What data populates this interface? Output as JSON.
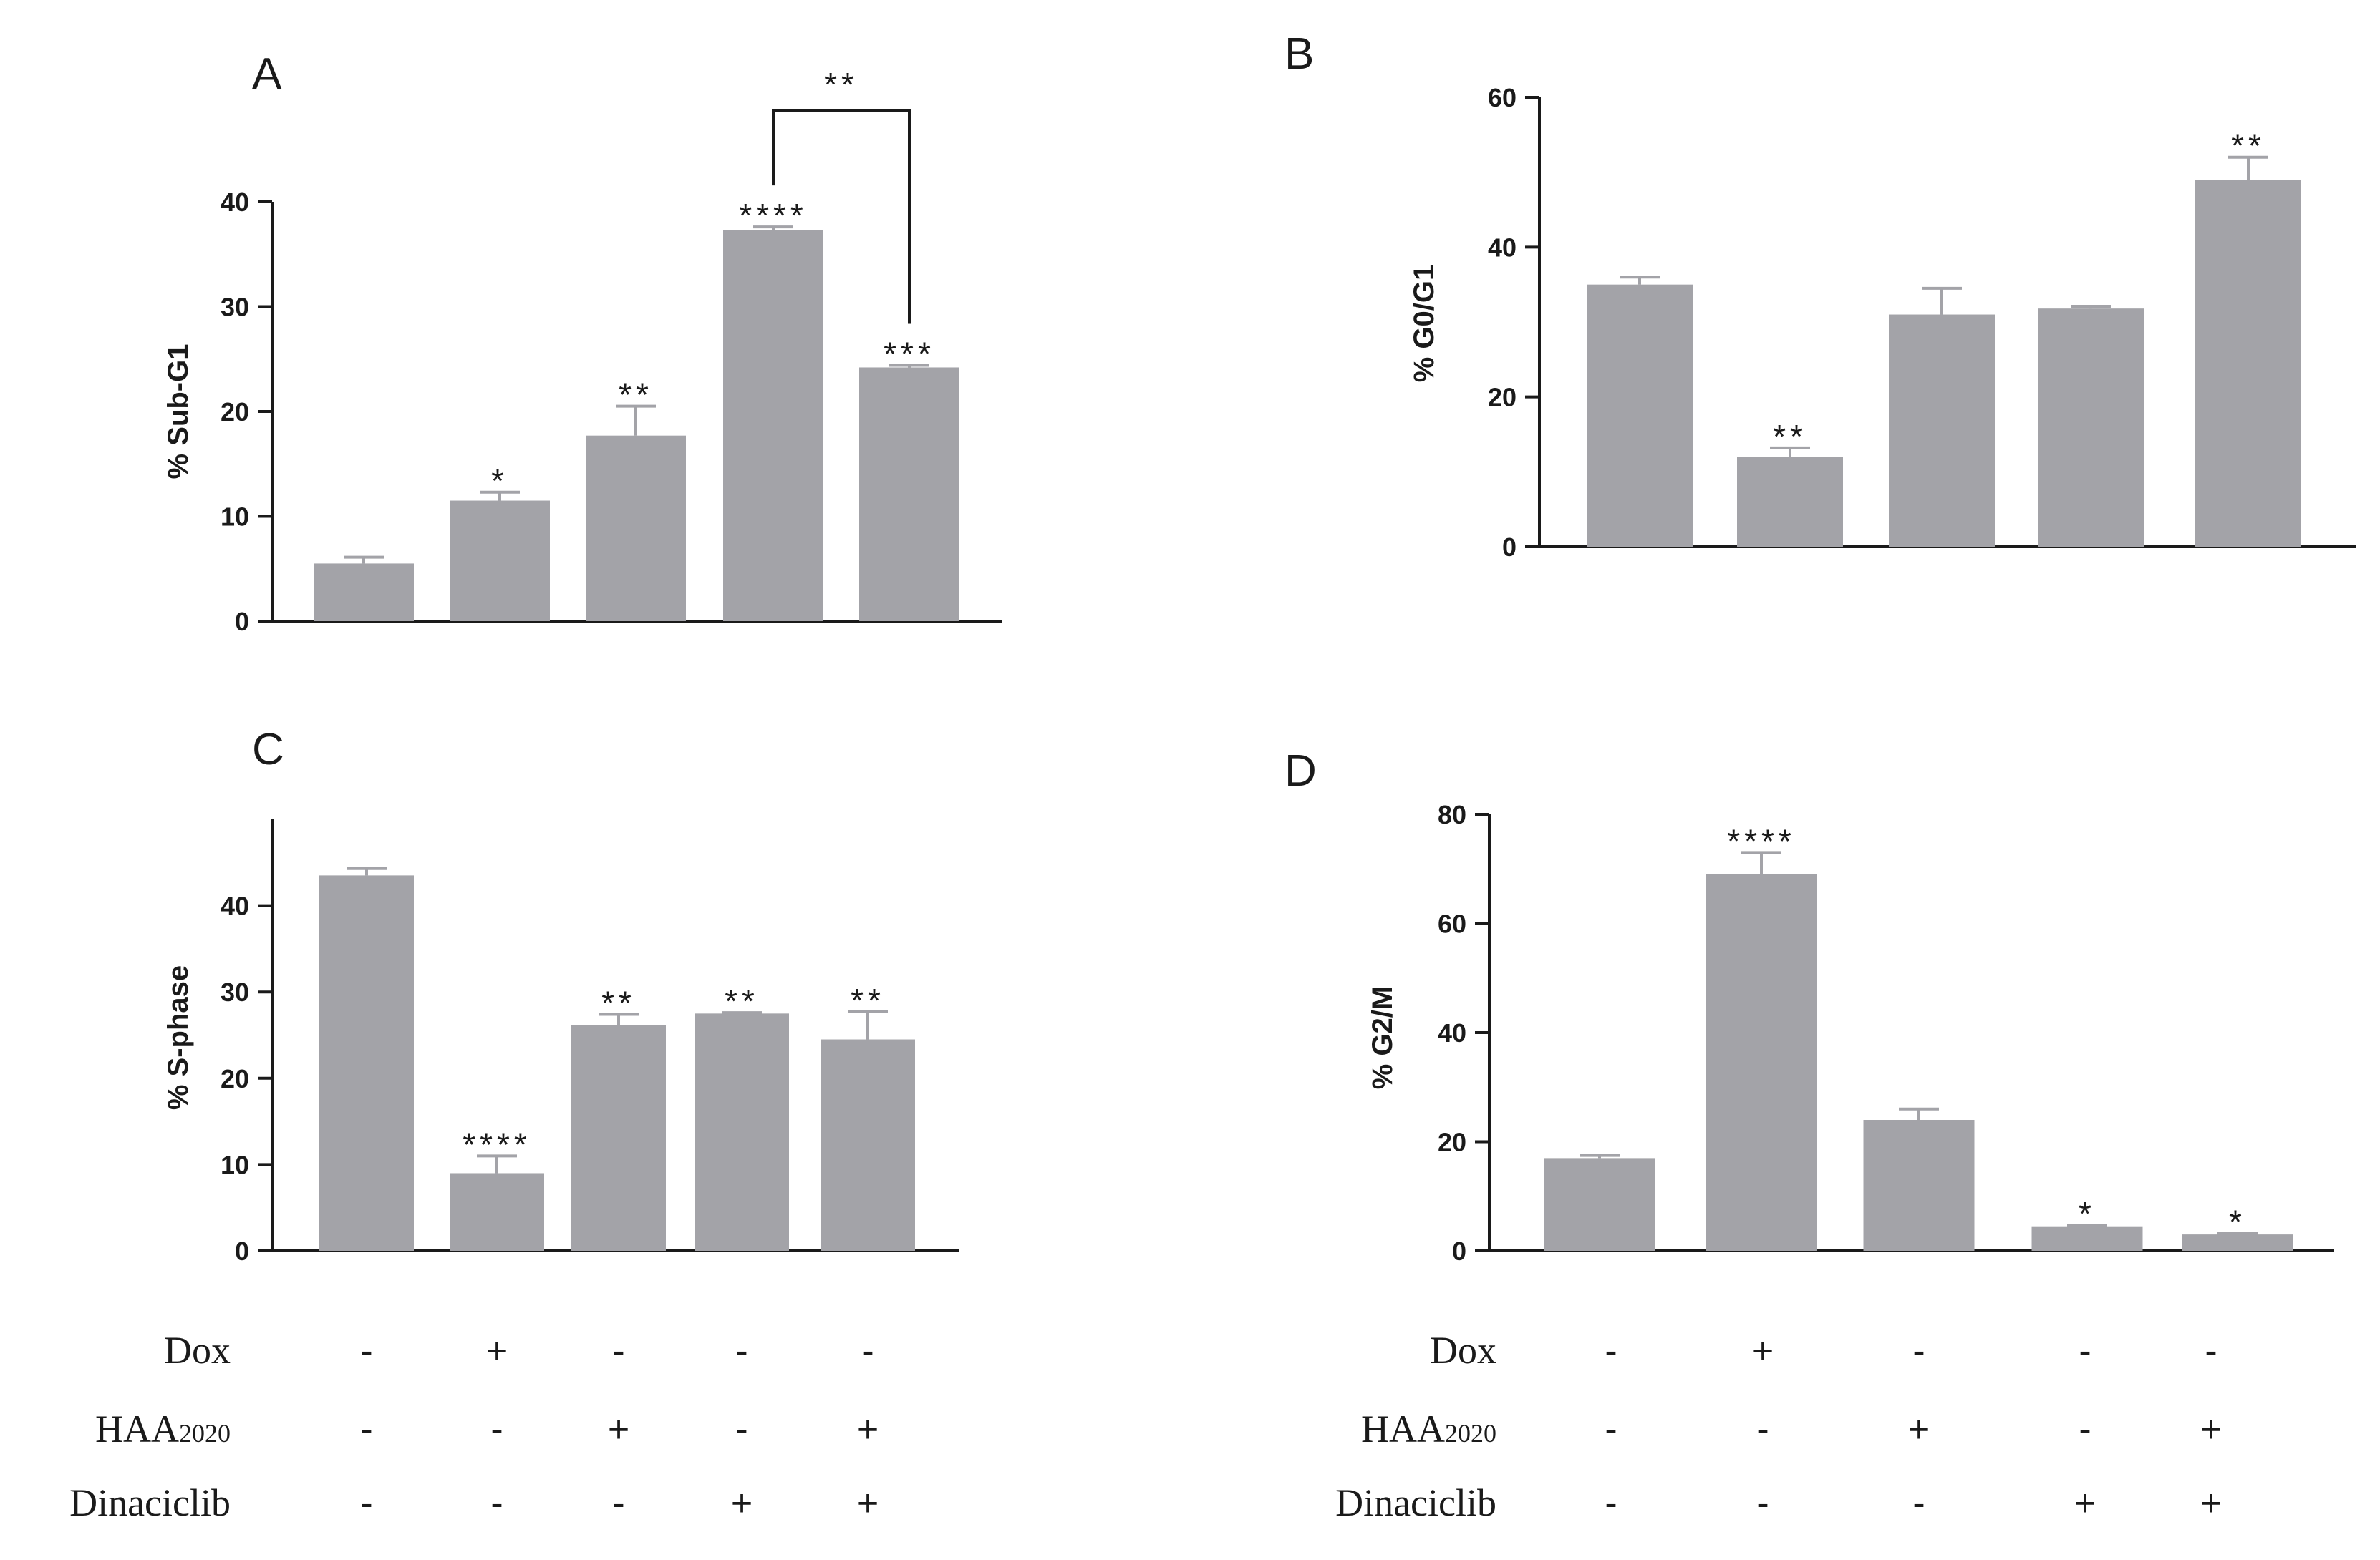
{
  "chart_data": [
    {
      "panel": "A",
      "type": "bar",
      "ylabel": "% Sub-G1",
      "ylim": [
        0,
        40
      ],
      "yticks": [
        0,
        10,
        20,
        30,
        40
      ],
      "tick_labels": [
        "0",
        "10",
        "20",
        "30",
        "40"
      ],
      "values": [
        5.5,
        11.5,
        17.7,
        37.3,
        24.2
      ],
      "errors": [
        0.6,
        0.8,
        2.8,
        0.3,
        0.2
      ],
      "significance": [
        "",
        "*",
        "**",
        "****",
        "***"
      ],
      "bracket": {
        "from": 3,
        "to": 4,
        "label": "**"
      }
    },
    {
      "panel": "B",
      "type": "bar",
      "ylabel": "% G0/G1",
      "ylim": [
        0,
        60
      ],
      "yticks": [
        0,
        20,
        40,
        60
      ],
      "tick_labels": [
        "0",
        "20",
        "40",
        "60"
      ],
      "values": [
        35,
        12,
        31,
        31.8,
        49
      ],
      "errors": [
        1,
        1.2,
        3.5,
        0.3,
        3
      ],
      "significance": [
        "",
        "**",
        "",
        "",
        "**"
      ]
    },
    {
      "panel": "C",
      "type": "bar",
      "ylabel": "% S-phase",
      "ylim": [
        0,
        50
      ],
      "yticks": [
        0,
        10,
        20,
        30,
        40
      ],
      "tick_labels": [
        "0",
        "10",
        "20",
        "30",
        "40"
      ],
      "values": [
        43.5,
        9,
        26.2,
        27.5,
        24.5
      ],
      "errors": [
        0.8,
        2,
        1.2,
        0.1,
        3.2
      ],
      "significance": [
        "",
        "****",
        "**",
        "**",
        "**"
      ]
    },
    {
      "panel": "D",
      "type": "bar",
      "ylabel": "% G2/M",
      "ylim": [
        0,
        80
      ],
      "yticks": [
        0,
        20,
        40,
        60,
        80
      ],
      "tick_labels": [
        "0",
        "20",
        "40",
        "60",
        "80"
      ],
      "values": [
        17,
        69,
        24,
        4.5,
        3
      ],
      "errors": [
        0.5,
        4,
        2,
        0.2,
        0.2
      ],
      "significance": [
        "",
        "****",
        "",
        "*",
        "*"
      ]
    }
  ],
  "conditions": [
    {
      "label": "Dox",
      "values": [
        "-",
        "+",
        "-",
        "-",
        "-"
      ]
    },
    {
      "label": "HAA2020",
      "label_main": "HAA",
      "label_sub": "2020",
      "values": [
        "-",
        "-",
        "+",
        "-",
        "+"
      ]
    },
    {
      "label": "Dinaciclib",
      "values": [
        "-",
        "-",
        "-",
        "+",
        "+"
      ]
    }
  ],
  "colors": {
    "bar": "#a3a3a8",
    "axis": "#1a1a1a",
    "text": "#1a1a1a"
  }
}
